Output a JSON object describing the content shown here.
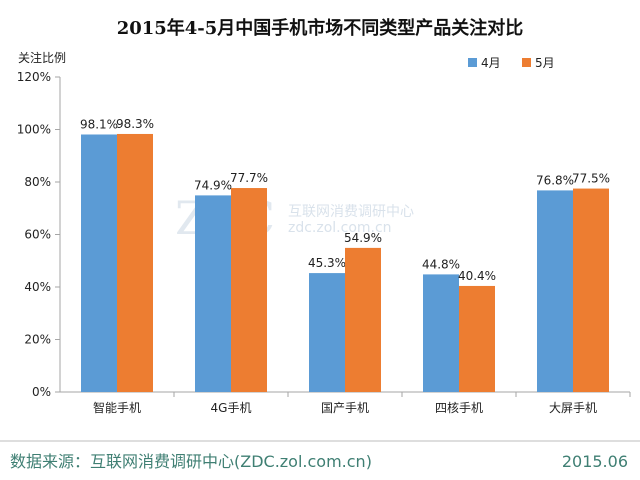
{
  "chart_data": {
    "type": "bar",
    "title": "2015年4-5月中国手机市场不同类型产品关注对比",
    "ylabel": "关注比例",
    "categories": [
      "智能手机",
      "4G手机",
      "国产手机",
      "四核手机",
      "大屏手机"
    ],
    "series": [
      {
        "name": "4月",
        "values": [
          98.1,
          74.9,
          45.3,
          44.8,
          76.8
        ],
        "labels": [
          "98.1%",
          "74.9%",
          "45.3%",
          "44.8%",
          "76.8%"
        ],
        "color": "#5b9bd5"
      },
      {
        "name": "5月",
        "values": [
          98.3,
          77.7,
          54.9,
          40.4,
          77.5
        ],
        "labels": [
          "98.3%",
          "77.7%",
          "54.9%",
          "40.4%",
          "77.5%"
        ],
        "color": "#ed7d31"
      }
    ],
    "ylim": [
      0,
      120
    ],
    "yticks": [
      0,
      20,
      40,
      60,
      80,
      100,
      120
    ],
    "ytick_labels": [
      "0%",
      "20%",
      "40%",
      "60%",
      "80%",
      "100%",
      "120%"
    ],
    "legend_position": "top-right",
    "grid": false
  },
  "watermark": {
    "logo": "ZDC",
    "text": "互联网消费调研中心",
    "sub": "zdc.zol.com.cn"
  },
  "footer": {
    "source": "数据来源：互联网消费调研中心(ZDC.zol.com.cn)",
    "date": "2015.06",
    "color": "#3f7f73"
  }
}
